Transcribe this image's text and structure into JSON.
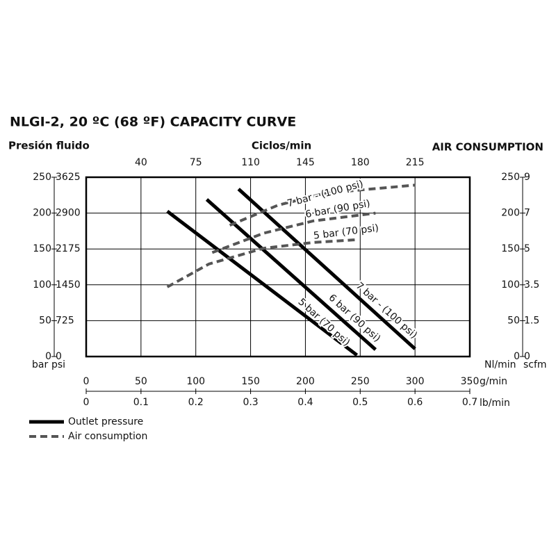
{
  "chart_data": {
    "type": "line",
    "title": "NLGI-2, 20 ºC (68 ºF) CAPACITY CURVE",
    "y_title": "Presión fluido",
    "x2_title": "Ciclos/min",
    "y2_title": "AIR CONSUMPTION",
    "y_units": [
      "bar",
      "psi"
    ],
    "y2_units": [
      "Nl/min",
      "scfm"
    ],
    "x_title": "g/min",
    "x3_title": "lb/min",
    "xlim": [
      0,
      350
    ],
    "xticks": [
      0,
      50,
      100,
      150,
      200,
      250,
      300,
      350
    ],
    "x2lim": [
      5,
      250
    ],
    "x2ticks": [
      40,
      75,
      110,
      145,
      180,
      215
    ],
    "x3lim": [
      0,
      0.7
    ],
    "x3ticks": [
      0,
      0.1,
      0.2,
      0.3,
      0.4,
      0.5,
      0.6,
      0.7
    ],
    "ylim": [
      0,
      250
    ],
    "yticks": [
      0,
      50,
      100,
      150,
      200,
      250
    ],
    "ypsilim": [
      0,
      3625
    ],
    "ypsiticks": [
      0,
      725,
      1450,
      2175,
      2900,
      3625
    ],
    "y2lim": [
      0,
      250
    ],
    "y2ticks": [
      0,
      50,
      100,
      150,
      200,
      250
    ],
    "y3ticks": [
      {
        "value": 0,
        "label": "0"
      },
      {
        "value": 50,
        "label": "1.5"
      },
      {
        "value": 100,
        "label": "3.5"
      },
      {
        "value": 150,
        "label": "5"
      },
      {
        "value": 200,
        "label": "7"
      },
      {
        "value": 250,
        "label": "9"
      }
    ],
    "grid": true,
    "series": [
      {
        "name": "7 bar - (100 psi)",
        "style": "solid",
        "color": "#000000",
        "x": [
          139,
          300
        ],
        "values": [
          233.5,
          10.7
        ]
      },
      {
        "name": "6 bar (90 psi)",
        "style": "solid",
        "color": "#000000",
        "x": [
          110,
          264
        ],
        "values": [
          219,
          9.7
        ]
      },
      {
        "name": "5 bar (70 psi)",
        "style": "solid",
        "color": "#000000",
        "x": [
          74,
          247
        ],
        "values": [
          202.5,
          2
        ]
      },
      {
        "name": "7 bar - (100 psi)",
        "style": "dashed",
        "axis": "y2",
        "color": "#555555",
        "x": [
          131,
          175,
          219,
          300
        ],
        "values": [
          183,
          211,
          228,
          239
        ]
      },
      {
        "name": "6 bar (90 psi)",
        "style": "dashed",
        "axis": "y2",
        "color": "#555555",
        "x": [
          115,
          162,
          207,
          264
        ],
        "values": [
          145,
          172,
          189,
          200
        ]
      },
      {
        "name": "5 bar (70 psi)",
        "style": "dashed",
        "axis": "y2",
        "color": "#555555",
        "x": [
          74,
          112,
          162,
          207,
          248
        ],
        "values": [
          97,
          129,
          151,
          159,
          163
        ]
      }
    ],
    "legend": [
      {
        "label": "Outlet pressure",
        "style": "solid",
        "color": "#000000"
      },
      {
        "label": "Air consumption",
        "style": "dashed",
        "color": "#555555"
      }
    ]
  }
}
